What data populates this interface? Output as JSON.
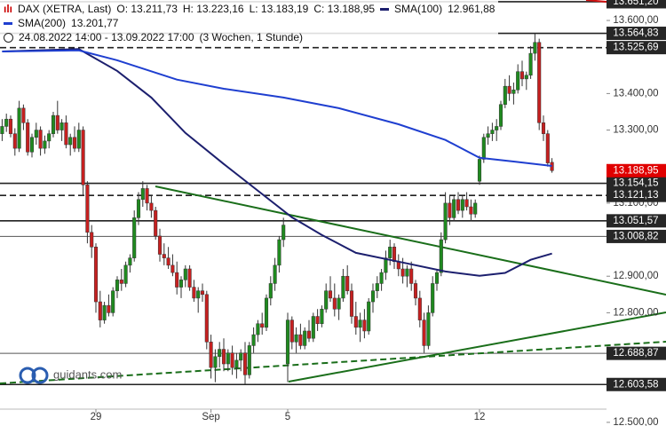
{
  "chart_data": {
    "type": "candlestick",
    "instrument": "DAX (XETRA, Last)",
    "ohlc_labels": [
      "O: 13.211,73",
      "H: 13.223,16",
      "L: 13.183,19",
      "C: 13.188,95"
    ],
    "period": "24.08.2022 14:00 - 13.09.2022 17:00",
    "period_note": "(3 Wochen, 1 Stunde)",
    "logo": "guidants.com",
    "up_color": "#1f8a1f",
    "down_color": "#c62020",
    "ylim": [
      12490,
      13656
    ],
    "yticks": [
      {
        "value": 13600,
        "label": "13.600,00"
      },
      {
        "value": 13400,
        "label": "13.400,00"
      },
      {
        "value": 13300,
        "label": "13.300,00"
      },
      {
        "value": 13100,
        "label": "13.100,00"
      },
      {
        "value": 12900,
        "label": "12.900,00"
      },
      {
        "value": 12800,
        "label": "12.800,00"
      },
      {
        "value": 12500,
        "label": "12.500,00"
      }
    ],
    "xticks": [
      {
        "value": 22,
        "label": "29"
      },
      {
        "value": 49,
        "label": "Sep"
      },
      {
        "value": 67,
        "label": "5"
      },
      {
        "value": 112,
        "label": "12"
      }
    ],
    "open": [
      13290,
      13310,
      13330,
      13290,
      13250,
      13360,
      13320,
      13240,
      13280,
      13300,
      13250,
      13270,
      13290,
      13340,
      13300,
      13320,
      13260,
      13280,
      13250,
      13300,
      13150,
      13020,
      12980,
      12830,
      12780,
      12820,
      12800,
      12860,
      12890,
      12880,
      12930,
      12950,
      13060,
      13110,
      13140,
      13100,
      13080,
      13010,
      12960,
      12950,
      12930,
      12910,
      12870,
      12890,
      12920,
      12870,
      12840,
      12860,
      12850,
      12720,
      12650,
      12680,
      12700,
      12660,
      12690,
      12650,
      12670,
      12690,
      12630,
      12710,
      12740,
      12770,
      12760,
      12840,
      12880,
      12930,
      13000,
      12660,
      12780,
      12720,
      12740,
      12710,
      12750,
      12730,
      12790,
      12770,
      12810,
      12860,
      12840,
      12810,
      12840,
      12900,
      12860,
      12790,
      12760,
      12780,
      12750,
      12830,
      12860,
      12880,
      12910,
      12950,
      12980,
      12940,
      12920,
      12900,
      12920,
      12880,
      12840,
      12780,
      12710,
      12800,
      12880,
      12910,
      13000,
      13100,
      13060,
      13110,
      13080,
      13110,
      13090,
      13070,
      13160,
      13220,
      13280,
      13290,
      13300,
      13310,
      13370,
      13420,
      13400,
      13410,
      13460,
      13440,
      13450,
      13510,
      13540,
      13320,
      13290,
      13211.73
    ],
    "high": [
      13330,
      13345,
      13340,
      13305,
      13380,
      13370,
      13330,
      13290,
      13320,
      13310,
      13285,
      13300,
      13350,
      13380,
      13330,
      13340,
      13290,
      13310,
      13320,
      13310,
      13160,
      13040,
      12990,
      12860,
      12830,
      12850,
      12870,
      12900,
      12920,
      12940,
      12960,
      13080,
      13130,
      13160,
      13150,
      13120,
      13090,
      13030,
      12990,
      12980,
      12960,
      12940,
      12900,
      12930,
      12930,
      12890,
      12870,
      12880,
      12860,
      12740,
      12700,
      12720,
      12730,
      12700,
      12710,
      12690,
      12700,
      12720,
      12720,
      12760,
      12780,
      12800,
      12850,
      12900,
      12950,
      13010,
      13060,
      12800,
      12790,
      12760,
      12770,
      12760,
      12780,
      12800,
      12810,
      12820,
      12880,
      12900,
      12880,
      12850,
      12920,
      12930,
      12880,
      12830,
      12800,
      12810,
      12840,
      12880,
      12900,
      12920,
      12970,
      13000,
      12990,
      12960,
      12950,
      12930,
      12940,
      12890,
      12860,
      12800,
      12820,
      12900,
      12920,
      13020,
      13130,
      13120,
      13120,
      13130,
      13120,
      13130,
      13110,
      13110,
      13230,
      13290,
      13310,
      13320,
      13330,
      13380,
      13440,
      13450,
      13430,
      13480,
      13490,
      13460,
      13530,
      13564.83,
      13550,
      13340,
      13300,
      13223.16
    ],
    "low": [
      13270,
      13295,
      13280,
      13230,
      13240,
      13300,
      13230,
      13225,
      13260,
      13230,
      13235,
      13250,
      13280,
      13290,
      13270,
      13250,
      13230,
      13240,
      13240,
      13120,
      12990,
      12950,
      12800,
      12760,
      12770,
      12790,
      12790,
      12840,
      12860,
      12870,
      12910,
      12940,
      13040,
      13090,
      13080,
      13060,
      13000,
      12940,
      12930,
      12920,
      12900,
      12850,
      12840,
      12870,
      12860,
      12830,
      12800,
      12830,
      12700,
      12620,
      12610,
      12650,
      12640,
      12640,
      12630,
      12620,
      12640,
      12603.58,
      12620,
      12690,
      12720,
      12740,
      12750,
      12820,
      12860,
      12910,
      12980,
      12610,
      12700,
      12690,
      12700,
      12700,
      12720,
      12720,
      12750,
      12760,
      12800,
      12830,
      12790,
      12780,
      12830,
      12850,
      12770,
      12740,
      12720,
      12730,
      12740,
      12800,
      12840,
      12860,
      12890,
      12930,
      12920,
      12900,
      12880,
      12870,
      12860,
      12820,
      12760,
      12690,
      12700,
      12790,
      12860,
      12900,
      12990,
      13040,
      13050,
      13070,
      13060,
      13080,
      13050,
      13060,
      13150,
      13210,
      13260,
      13270,
      13270,
      13300,
      13360,
      13380,
      13370,
      13400,
      13420,
      13410,
      13440,
      13490,
      13300,
      13270,
      13200,
      13183.19
    ],
    "close": [
      13310,
      13330,
      13290,
      13250,
      13360,
      13320,
      13240,
      13280,
      13300,
      13250,
      13270,
      13290,
      13340,
      13300,
      13320,
      13260,
      13280,
      13250,
      13300,
      13150,
      13020,
      12980,
      12830,
      12780,
      12820,
      12800,
      12860,
      12890,
      12880,
      12930,
      12950,
      13060,
      13110,
      13140,
      13100,
      13080,
      13010,
      12960,
      12950,
      12930,
      12910,
      12870,
      12890,
      12920,
      12870,
      12840,
      12860,
      12850,
      12720,
      12650,
      12680,
      12700,
      12660,
      12690,
      12650,
      12670,
      12690,
      12630,
      12710,
      12740,
      12770,
      12760,
      12840,
      12880,
      12930,
      13000,
      13040,
      12780,
      12720,
      12740,
      12710,
      12750,
      12730,
      12790,
      12770,
      12810,
      12860,
      12840,
      12810,
      12840,
      12900,
      12860,
      12790,
      12760,
      12780,
      12750,
      12830,
      12860,
      12880,
      12910,
      12950,
      12980,
      12940,
      12920,
      12900,
      12920,
      12880,
      12840,
      12780,
      12710,
      12800,
      12880,
      12910,
      13000,
      13100,
      13060,
      13110,
      13080,
      13110,
      13090,
      13070,
      13100,
      13220,
      13280,
      13290,
      13300,
      13310,
      13370,
      13420,
      13400,
      13410,
      13460,
      13440,
      13450,
      13510,
      13540,
      13320,
      13290,
      13210,
      13188.95
    ],
    "series": [
      {
        "name": "SMA(100)",
        "color": "#1c1f6e",
        "value_label": "12.961,88",
        "x": [
          0,
          18,
          27,
          35,
          43,
          52,
          60,
          68,
          75,
          83,
          93,
          104,
          112,
          118,
          124,
          129
        ],
        "values": [
          13515,
          13522,
          13462,
          13389,
          13292,
          13207,
          13134,
          13061,
          13013,
          12964,
          12940,
          12913,
          12901,
          12909,
          12945,
          12961.88
        ]
      },
      {
        "name": "SMA(200)",
        "color": "#1f3fd0",
        "value_label": "13.201,77",
        "x": [
          0,
          18,
          27,
          41,
          52,
          66,
          79,
          93,
          104,
          112,
          120,
          129
        ],
        "values": [
          13515,
          13518,
          13491,
          13438,
          13413,
          13389,
          13360,
          13316,
          13273,
          13224,
          13214,
          13201.77
        ]
      }
    ],
    "levels": [
      {
        "value": 13651.2,
        "label": "13.651,20",
        "style": "solid"
      },
      {
        "value": 13564.83,
        "label": "13.564,83",
        "style": "solid"
      },
      {
        "value": 13525.69,
        "label": "13.525,69",
        "style": "dashed"
      },
      {
        "value": 13154.15,
        "label": "13.154,15",
        "style": "solid"
      },
      {
        "value": 13121.13,
        "label": "13.121,13",
        "style": "dashed"
      },
      {
        "value": 13051.57,
        "label": "13.051,57",
        "style": "solid"
      },
      {
        "value": 13008.82,
        "label": "13.008,82",
        "style": "thin"
      },
      {
        "value": 12688.87,
        "label": "12.688,87",
        "style": "thin"
      },
      {
        "value": 12603.58,
        "label": "12.603,58",
        "style": "solid"
      }
    ],
    "last_price": {
      "value": 13188.95,
      "label": "13.188,95",
      "color": "#e00000"
    }
  }
}
